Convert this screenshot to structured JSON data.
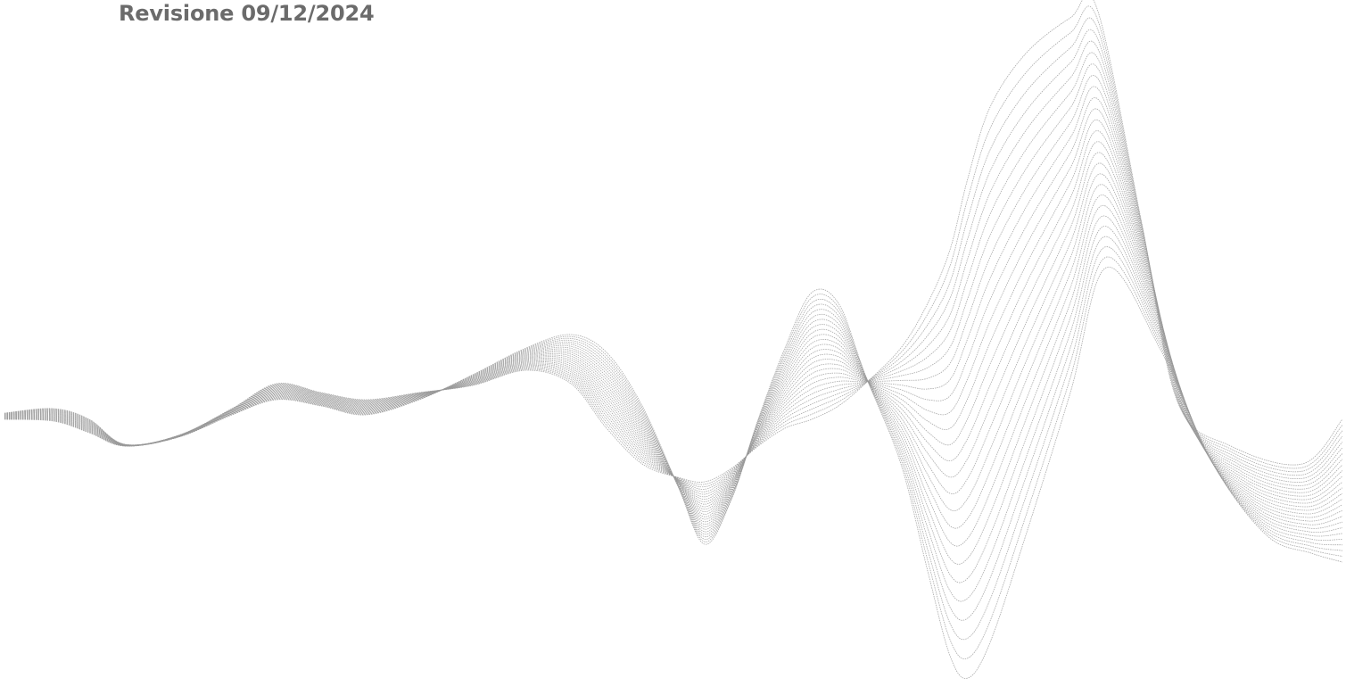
{
  "document": {
    "revision_label": "Revisione 09/12/2024",
    "partial_text": ""
  },
  "art": {
    "name": "decorative-wave-lines",
    "line_color": "#9a9a9a"
  }
}
